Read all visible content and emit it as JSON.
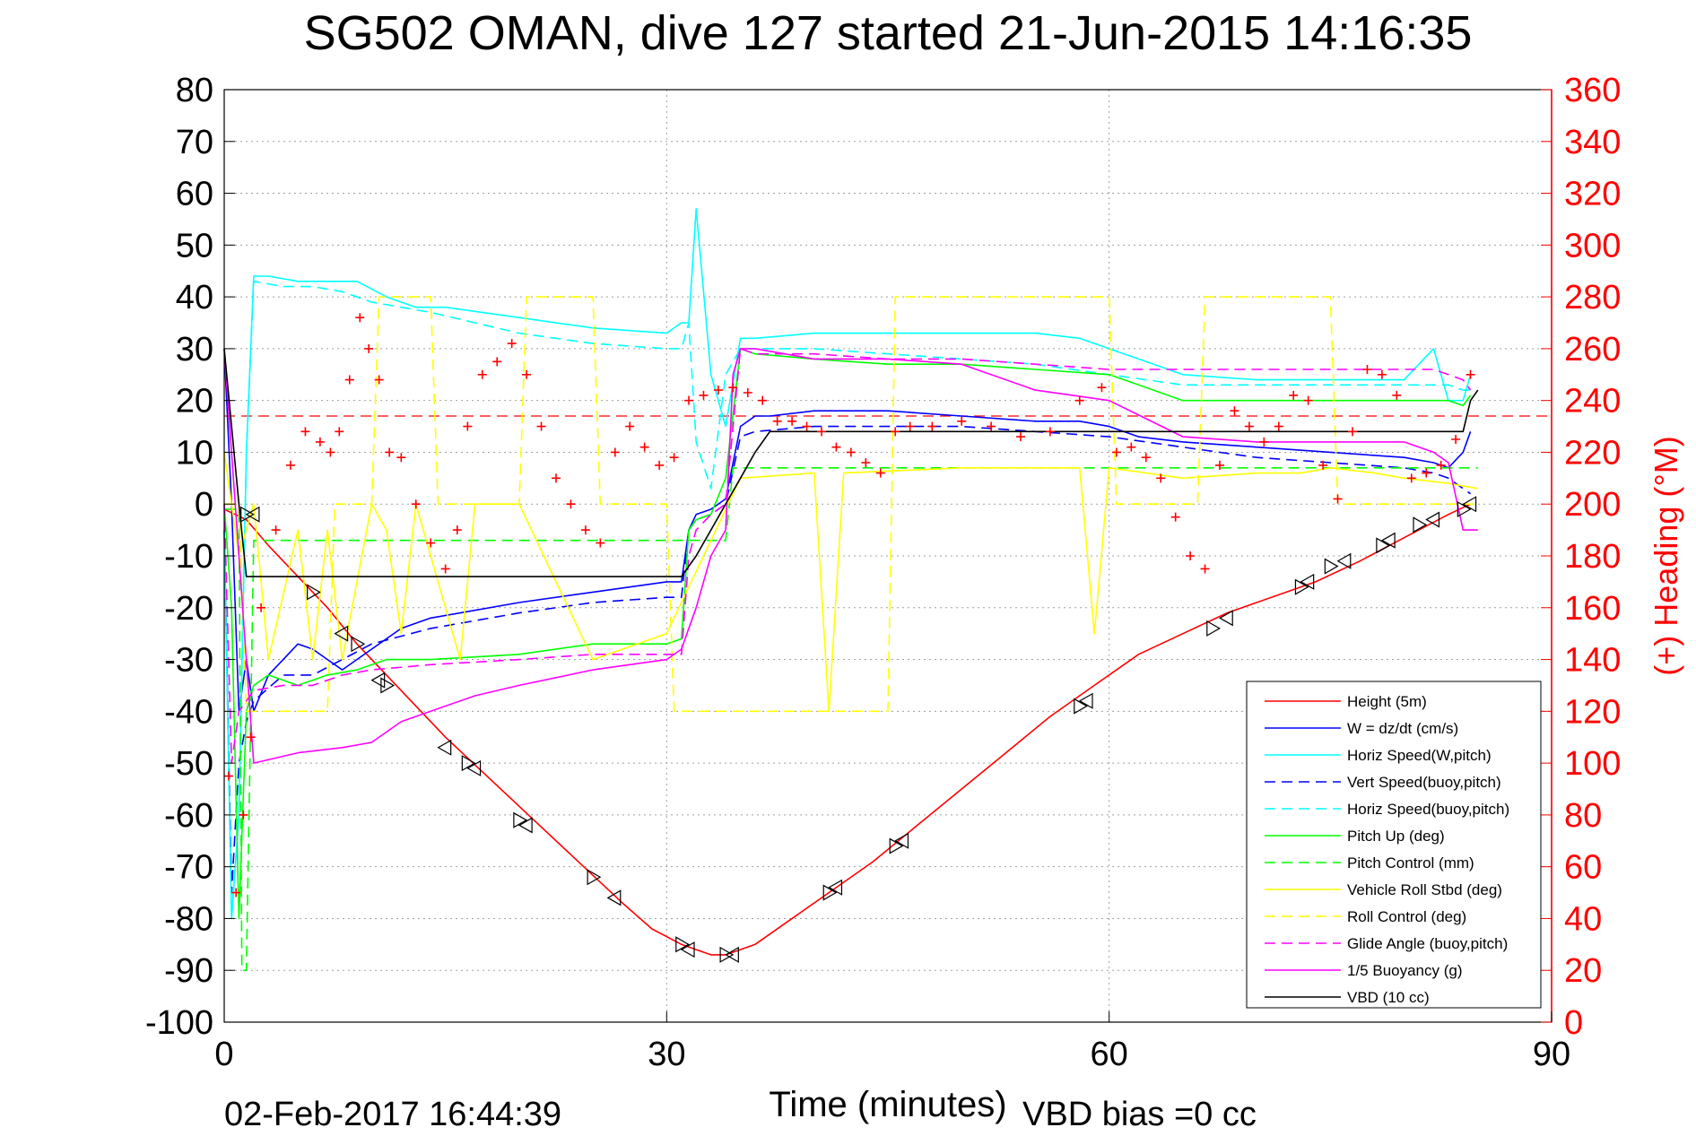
{
  "chart_data": {
    "type": "line",
    "title": "SG502 OMAN, dive 127 started 21-Jun-2015 14:16:35",
    "xlabel": "Time (minutes)",
    "ylabel": "",
    "y2label": "(+) Heading (°M)",
    "timestamp": "02-Feb-2017 16:44:39",
    "vbd_bias": "VBD bias =0 cc",
    "xlim": [
      0,
      90
    ],
    "ylim": [
      -100,
      80
    ],
    "y2lim": [
      0,
      360
    ],
    "xticks": [
      0,
      30,
      60,
      90
    ],
    "yticks": [
      80,
      70,
      60,
      50,
      40,
      30,
      20,
      10,
      0,
      -10,
      -20,
      -30,
      -40,
      -50,
      -60,
      -70,
      -80,
      -90,
      -100
    ],
    "y2ticks": [
      360,
      340,
      320,
      300,
      280,
      260,
      240,
      220,
      200,
      180,
      160,
      140,
      120,
      100,
      80,
      60,
      40,
      20,
      0
    ],
    "grid": true,
    "legend_position": "bottom-right",
    "colors": {
      "height": "#ff0000",
      "w": "#0000ff",
      "horiz_speed": "#00ffff",
      "pitch": "#00ff00",
      "roll": "#ffff00",
      "glide": "#ff00ff",
      "vbd": "#000000",
      "heading": "#ff0000",
      "grid": "#a0a0a0"
    },
    "series": [
      {
        "name": "Height (5m)",
        "color": "#ff0000",
        "dash": "solid",
        "x": [
          0,
          1.5,
          3,
          5,
          7,
          9,
          11,
          13,
          15,
          18,
          21,
          24,
          27,
          29,
          31,
          32,
          33,
          34,
          35,
          36,
          38,
          41,
          44,
          47,
          50,
          53,
          56,
          59,
          62,
          65,
          68,
          71,
          74,
          77,
          79,
          81,
          83,
          84.5
        ],
        "y": [
          -1,
          -3,
          -8,
          -14,
          -20,
          -27,
          -33,
          -39,
          -45,
          -53,
          -61,
          -69,
          -77,
          -82,
          -85,
          -86,
          -87,
          -87,
          -86,
          -85,
          -81,
          -75,
          -69,
          -62,
          -55,
          -48,
          -41,
          -35,
          -29,
          -25,
          -21,
          -18,
          -15,
          -11,
          -8,
          -5,
          -2,
          0
        ]
      },
      {
        "name": "W = dz/dt (cm/s)",
        "color": "#0000ff",
        "dash": "solid",
        "x": [
          0,
          0.5,
          1,
          1.5,
          2,
          3,
          4,
          5,
          6,
          7,
          8,
          10,
          12,
          14,
          16,
          20,
          25,
          30,
          31,
          31.5,
          32,
          33,
          34,
          35,
          36,
          37,
          40,
          45,
          50,
          55,
          58,
          60,
          62,
          65,
          70,
          75,
          80,
          82,
          83,
          84,
          84.5
        ],
        "y": [
          30,
          0,
          -40,
          -30,
          -40,
          -33,
          -30,
          -27,
          -28,
          -30,
          -32,
          -28,
          -24,
          -22,
          -21,
          -19,
          -17,
          -15,
          -15,
          -5,
          -2,
          -1,
          1,
          15,
          17,
          17,
          18,
          18,
          17,
          16,
          16,
          15,
          13,
          12,
          11,
          10,
          9,
          8,
          7,
          10,
          14
        ]
      },
      {
        "name": "Horiz Speed(W,pitch)",
        "color": "#00ffff",
        "dash": "solid",
        "x": [
          0,
          0.5,
          1,
          1.5,
          2,
          3,
          5,
          7,
          9,
          11,
          13,
          15,
          20,
          25,
          30,
          31,
          31.5,
          32,
          33,
          34,
          35,
          36,
          40,
          45,
          50,
          55,
          58,
          60,
          62,
          65,
          70,
          75,
          80,
          82,
          83,
          84,
          84.5
        ],
        "y": [
          -5,
          -80,
          -60,
          10,
          44,
          44,
          43,
          43,
          43,
          40,
          38,
          38,
          36,
          34,
          33,
          35,
          35,
          57,
          25,
          15,
          32,
          32,
          33,
          33,
          33,
          33,
          32,
          30,
          28,
          25,
          24,
          24,
          24,
          30,
          20,
          20,
          25
        ]
      },
      {
        "name": "Vert Speed(buoy,pitch)",
        "color": "#0000ff",
        "dash": "dashed",
        "x": [
          0,
          0.5,
          1,
          1.5,
          2,
          4,
          6,
          8,
          10,
          14,
          20,
          25,
          30,
          31,
          31.5,
          32,
          33,
          34,
          35,
          36,
          40,
          45,
          50,
          55,
          60,
          65,
          70,
          75,
          80,
          82,
          83,
          84,
          84.5
        ],
        "y": [
          -5,
          -75,
          -50,
          -42,
          -38,
          -33,
          -33,
          -30,
          -27,
          -24,
          -21,
          -19,
          -18,
          -18,
          -5,
          -3,
          -2,
          0,
          13,
          14,
          15,
          15,
          15,
          14,
          13,
          11,
          9,
          8,
          7,
          6,
          5,
          3,
          2
        ]
      },
      {
        "name": "Horiz Speed(buoy,pitch)",
        "color": "#00ffff",
        "dash": "dashed",
        "x": [
          0,
          0.5,
          1,
          1.5,
          2,
          4,
          6,
          8,
          10,
          14,
          20,
          25,
          30,
          31,
          31.5,
          32,
          33,
          34,
          35,
          36,
          40,
          45,
          50,
          55,
          60,
          65,
          70,
          75,
          80,
          82,
          83,
          84,
          84.5
        ],
        "y": [
          -5,
          -80,
          -60,
          10,
          43,
          42,
          42,
          41,
          39,
          37,
          33,
          31,
          30,
          30,
          35,
          12,
          3,
          25,
          30,
          30,
          30,
          29,
          28,
          27,
          25,
          23,
          23,
          23,
          23,
          23,
          23,
          22,
          22
        ]
      },
      {
        "name": "Pitch Up (deg)",
        "color": "#00ff00",
        "dash": "solid",
        "x": [
          0,
          0.5,
          1,
          1.5,
          2,
          3,
          5,
          7,
          9,
          11,
          14,
          20,
          25,
          30,
          31,
          31.5,
          32,
          33,
          34,
          35,
          36,
          40,
          45,
          50,
          55,
          60,
          62,
          65,
          70,
          75,
          80,
          82,
          83,
          84,
          84.5
        ],
        "y": [
          0,
          -20,
          -80,
          -40,
          -35,
          -33,
          -35,
          -33,
          -32,
          -30,
          -30,
          -29,
          -27,
          -27,
          -26,
          -5,
          -3,
          -2,
          5,
          30,
          29,
          28,
          27,
          27,
          26,
          25,
          23,
          20,
          20,
          20,
          20,
          20,
          20,
          19,
          21
        ]
      },
      {
        "name": "Pitch Control (mm)",
        "color": "#00ff00",
        "dash": "dashed",
        "x": [
          0,
          1,
          1.2,
          1.5,
          2,
          34,
          34.5,
          85
        ],
        "y": [
          -1,
          -1,
          -90,
          -90,
          -7,
          -7,
          7,
          7
        ]
      },
      {
        "name": "Vehicle Roll Stbd (deg)",
        "color": "#ffff00",
        "dash": "solid",
        "x": [
          0,
          1,
          2,
          3,
          5,
          6,
          7,
          8,
          10,
          11,
          12,
          13,
          16,
          17,
          20,
          25,
          30,
          35,
          40,
          41,
          42,
          50,
          58,
          59,
          60,
          65,
          70,
          73,
          75,
          78,
          80,
          83,
          85
        ],
        "y": [
          10,
          -10,
          0,
          -30,
          -5,
          -30,
          -5,
          -30,
          0,
          -5,
          -25,
          0,
          -30,
          0,
          0,
          -30,
          -25,
          5,
          6,
          -40,
          6,
          7,
          7,
          -25,
          7,
          5,
          6,
          6,
          7,
          6,
          5,
          4,
          3
        ]
      },
      {
        "name": "Roll Control (deg)",
        "color": "#ffff00",
        "dash": "dashed",
        "x": [
          0,
          1,
          1.5,
          2,
          7,
          7.5,
          10,
          10.5,
          14,
          14.5,
          20,
          20.5,
          25,
          25.5,
          30,
          30.5,
          45,
          45.5,
          60,
          60.5,
          66,
          66.5,
          75,
          75.5,
          85
        ],
        "y": [
          0,
          0,
          -40,
          -40,
          -40,
          0,
          0,
          40,
          40,
          0,
          0,
          40,
          40,
          0,
          0,
          -40,
          -40,
          40,
          40,
          0,
          0,
          40,
          40,
          0,
          0
        ]
      },
      {
        "name": "Glide Angle (buoy,pitch)",
        "color": "#ff00ff",
        "dash": "dashed",
        "x": [
          0,
          0.5,
          1,
          1.5,
          2,
          4,
          6,
          8,
          10,
          14,
          20,
          25,
          30,
          31,
          31.5,
          32,
          33,
          34,
          35,
          36,
          40,
          45,
          50,
          55,
          60,
          65,
          70,
          75,
          80,
          82,
          83,
          84,
          84.5
        ],
        "y": [
          0,
          -50,
          -40,
          -38,
          -36,
          -35,
          -35,
          -33,
          -32,
          -31,
          -30,
          -29,
          -29,
          -29,
          -10,
          -5,
          -2,
          0,
          30,
          29,
          29,
          28,
          28,
          27,
          26,
          26,
          26,
          26,
          26,
          26,
          25,
          24,
          22
        ]
      },
      {
        "name": "1/5 Buoyancy (g)",
        "color": "#ff00ff",
        "dash": "solid",
        "x": [
          0,
          1,
          2,
          5,
          8,
          10,
          12,
          14,
          17,
          20,
          25,
          30,
          31,
          32,
          33,
          34,
          34.5,
          35,
          36,
          40,
          45,
          50,
          55,
          60,
          65,
          70,
          75,
          80,
          82,
          83,
          84,
          85
        ],
        "y": [
          30,
          -10,
          -50,
          -48,
          -47,
          -46,
          -42,
          -40,
          -37,
          -35,
          -32,
          -30,
          -28,
          -20,
          -10,
          -5,
          25,
          30,
          30,
          28,
          28,
          27,
          22,
          20,
          13,
          12,
          12,
          12,
          10,
          8,
          -5,
          -5
        ]
      },
      {
        "name": "VBD (10 cc)",
        "color": "#000000",
        "dash": "solid",
        "x": [
          0,
          1,
          1.5,
          2,
          31,
          32,
          33,
          34,
          35,
          36,
          37,
          84,
          84.5,
          85
        ],
        "y": [
          30,
          0,
          -14,
          -14,
          -14,
          -10,
          -5,
          0,
          5,
          10,
          14,
          14,
          20,
          22
        ]
      }
    ],
    "heading": {
      "name": "Heading",
      "color": "#ff0000",
      "marker": "+",
      "axis": "right",
      "mean": 234,
      "x": [
        0.3,
        0.8,
        1.3,
        1.8,
        2.5,
        3.5,
        4.5,
        5.5,
        6.5,
        7.2,
        7.8,
        8.5,
        9.2,
        9.8,
        10.5,
        11.2,
        12,
        13,
        14,
        15,
        15.8,
        16.5,
        17.5,
        18.5,
        19.5,
        20.5,
        21.5,
        22.5,
        23.5,
        24.5,
        25.5,
        26.5,
        27.5,
        28.5,
        29.5,
        30.5,
        31.5,
        32.5,
        33.5,
        34.5,
        35.5,
        36.5,
        37.5,
        38.5,
        39.5,
        40.5,
        41.5,
        42.5,
        43.5,
        44.5,
        45.5,
        46.5,
        48,
        50,
        52,
        54,
        56,
        58,
        59.5,
        60.5,
        61.5,
        62.5,
        63.5,
        64.5,
        65.5,
        66.5,
        67.5,
        68.5,
        69.5,
        70.5,
        71.5,
        72.5,
        73.5,
        74.5,
        75.5,
        76.5,
        77.5,
        78.5,
        79.5,
        80.5,
        81.5,
        82.5,
        83.5,
        84.5
      ],
      "y": [
        95,
        50,
        80,
        110,
        160,
        190,
        215,
        228,
        224,
        220,
        228,
        248,
        272,
        260,
        248,
        220,
        218,
        200,
        185,
        175,
        190,
        230,
        250,
        255,
        262,
        250,
        230,
        210,
        200,
        190,
        185,
        220,
        230,
        222,
        215,
        218,
        240,
        242,
        244,
        245,
        243,
        240,
        232,
        232,
        230,
        228,
        222,
        220,
        216,
        212,
        228,
        230,
        230,
        232,
        230,
        226,
        228,
        240,
        245,
        220,
        222,
        218,
        210,
        195,
        180,
        175,
        215,
        236,
        230,
        224,
        230,
        242,
        240,
        215,
        202,
        228,
        252,
        250,
        242,
        210,
        212,
        215,
        225,
        250
      ]
    },
    "markers": {
      "symbol": "triangle",
      "color": "#000000",
      "x": [
        1.5,
        2,
        6,
        8,
        9,
        10.5,
        11,
        15,
        16.5,
        17,
        20,
        20.5,
        25,
        26.5,
        31,
        31.5,
        34,
        34.5,
        41,
        41.5,
        45.5,
        46,
        58,
        58.5,
        67,
        68,
        73,
        73.5,
        75,
        76,
        78.5,
        79,
        81,
        82,
        84,
        84.5
      ],
      "y": [
        -2,
        -2,
        -17,
        -25,
        -27,
        -34,
        -35,
        -47,
        -50,
        -51,
        -61,
        -62,
        -72,
        -76,
        -85,
        -86,
        -87,
        -87,
        -75,
        -74,
        -66,
        -65,
        -39,
        -38,
        -24,
        -22,
        -16,
        -15,
        -12,
        -11,
        -8,
        -7,
        -4,
        -3,
        -1,
        0
      ]
    }
  }
}
